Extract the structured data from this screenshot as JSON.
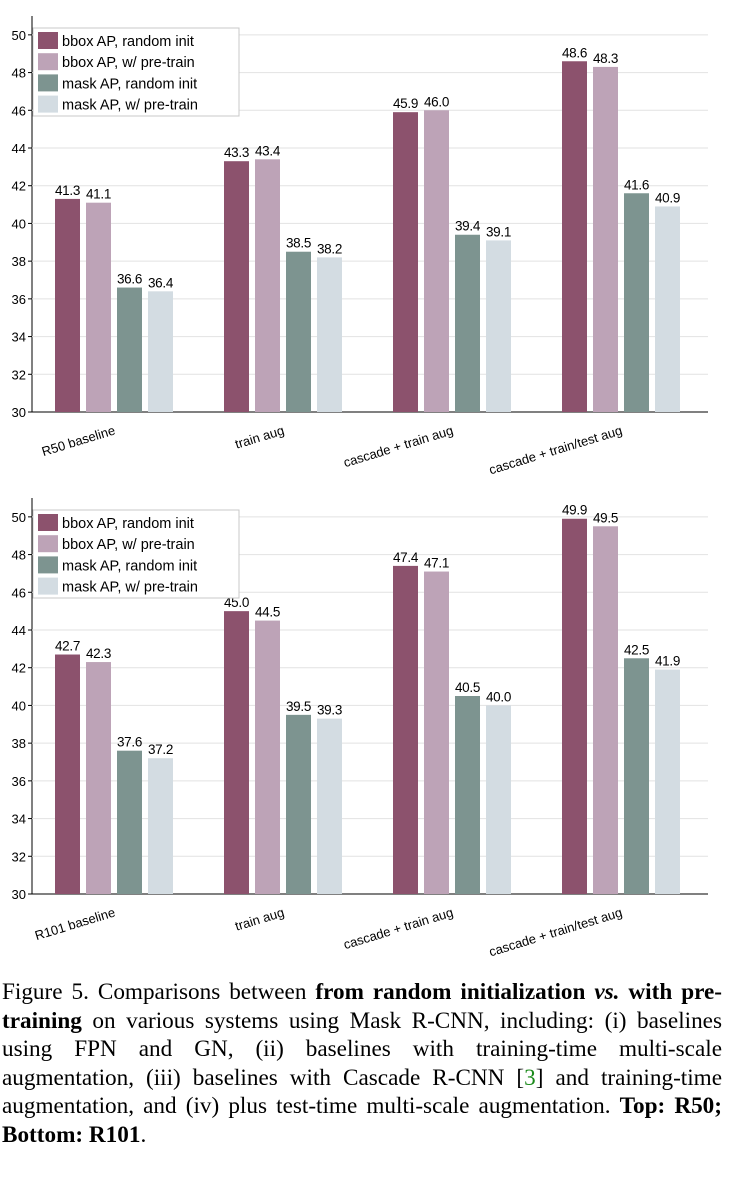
{
  "chart_data": [
    {
      "type": "bar",
      "id": "top",
      "categories": [
        "R50 baseline",
        "train aug",
        "cascade + train aug",
        "cascade + train/test aug"
      ],
      "ylim": [
        30,
        51
      ],
      "yticks": [
        "30",
        "32",
        "34",
        "36",
        "38",
        "40",
        "42",
        "44",
        "46",
        "48",
        "50"
      ],
      "series": [
        {
          "name": "bbox AP, random init",
          "color": "#8c526d",
          "values": [
            41.3,
            43.3,
            45.9,
            48.6
          ],
          "labels": [
            "41.3",
            "43.3",
            "45.9",
            "48.6"
          ]
        },
        {
          "name": "bbox AP, w/ pre-train",
          "color": "#bda3b7",
          "values": [
            41.1,
            43.4,
            46.0,
            48.3
          ],
          "labels": [
            "41.1",
            "43.4",
            "46.0",
            "48.3"
          ]
        },
        {
          "name": "mask AP, random init",
          "color": "#7d9490",
          "values": [
            36.6,
            38.5,
            39.4,
            41.6
          ],
          "labels": [
            "36.6",
            "38.5",
            "39.4",
            "41.6"
          ]
        },
        {
          "name": "mask AP, w/ pre-train",
          "color": "#d3dce2",
          "values": [
            36.4,
            38.2,
            39.1,
            40.9
          ],
          "labels": [
            "36.4",
            "38.2",
            "39.1",
            "40.9"
          ]
        }
      ]
    },
    {
      "type": "bar",
      "id": "bottom",
      "categories": [
        "R101 baseline",
        "train aug",
        "cascade + train aug",
        "cascade + train/test aug"
      ],
      "ylim": [
        30,
        51
      ],
      "yticks": [
        "30",
        "32",
        "34",
        "36",
        "38",
        "40",
        "42",
        "44",
        "46",
        "48",
        "50"
      ],
      "series": [
        {
          "name": "bbox AP, random init",
          "color": "#8c526d",
          "values": [
            42.7,
            45.0,
            47.4,
            49.9
          ],
          "labels": [
            "42.7",
            "45.0",
            "47.4",
            "49.9"
          ]
        },
        {
          "name": "bbox AP, w/ pre-train",
          "color": "#bda3b7",
          "values": [
            42.3,
            44.5,
            47.1,
            49.5
          ],
          "labels": [
            "42.3",
            "44.5",
            "47.1",
            "49.5"
          ]
        },
        {
          "name": "mask AP, random init",
          "color": "#7d9490",
          "values": [
            37.6,
            39.5,
            40.5,
            42.5
          ],
          "labels": [
            "37.6",
            "39.5",
            "40.5",
            "42.5"
          ]
        },
        {
          "name": "mask AP, w/ pre-train",
          "color": "#d3dce2",
          "values": [
            37.2,
            39.3,
            40.0,
            41.9
          ],
          "labels": [
            "37.2",
            "39.3",
            "40.0",
            "41.9"
          ]
        }
      ]
    }
  ],
  "caption": {
    "figure_label": "Figure 5.",
    "text1": " Comparisons between ",
    "bold1": "from random initialization ",
    "bold_vs": "vs.",
    "bold2": " with pre-training",
    "text2": " on various systems using Mask R-CNN, including: (i) baselines using FPN and GN, (ii) baselines with training-time multi-scale augmentation, (iii) baselines with Cascade R-CNN [",
    "ref": "3",
    "text3": "] and training-time augmentation, and (iv) plus test-time multi-scale augmentation. ",
    "bold_end": "Top: R50; Bottom: R101",
    "text_end": "."
  }
}
